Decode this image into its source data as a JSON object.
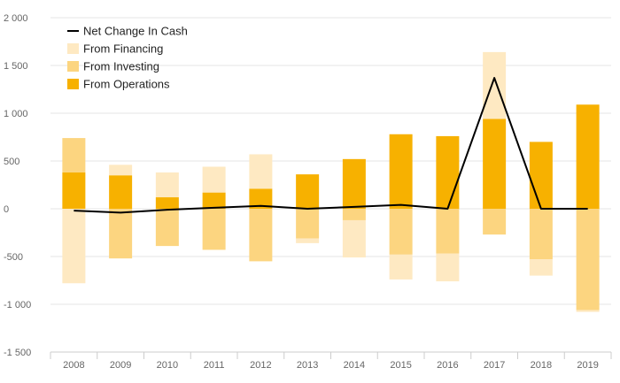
{
  "colors": {
    "background": "#ffffff",
    "grid": "#e6e6e6",
    "axis": "#cccccc",
    "operations": "#f7b100",
    "investing": "#fcd580",
    "financing": "#fee9c2",
    "net_line": "#000000",
    "tick_text": "#666666"
  },
  "chart_data": {
    "type": "bar",
    "stacked": true,
    "categories": [
      "2008",
      "2009",
      "2010",
      "2011",
      "2012",
      "2013",
      "2014",
      "2015",
      "2016",
      "2017",
      "2018",
      "2019"
    ],
    "series": [
      {
        "name": "From Financing",
        "kind": "bar",
        "color": "#fee9c2",
        "values": [
          -780,
          110,
          260,
          270,
          360,
          -50,
          -390,
          -260,
          -290,
          700,
          -170,
          -20
        ]
      },
      {
        "name": "From Investing",
        "kind": "bar",
        "color": "#fcd580",
        "values": [
          360,
          -520,
          -390,
          -430,
          -550,
          -310,
          -120,
          -480,
          -470,
          -270,
          -530,
          -1060
        ]
      },
      {
        "name": "From Operations",
        "kind": "bar",
        "color": "#f7b100",
        "values": [
          380,
          350,
          120,
          170,
          210,
          360,
          520,
          780,
          760,
          940,
          700,
          1090
        ]
      },
      {
        "name": "Net Change In Cash",
        "kind": "line",
        "color": "#000000",
        "values": [
          -20,
          -40,
          -10,
          10,
          30,
          0,
          20,
          40,
          0,
          1370,
          0,
          0
        ]
      }
    ],
    "legend_order": [
      "Net Change In Cash",
      "From Financing",
      "From Investing",
      "From Operations"
    ],
    "legend_position": "top-left",
    "ylim": [
      -1500,
      2000
    ],
    "yticks": [
      2000,
      1500,
      1000,
      500,
      0,
      -500,
      -1000,
      -1500
    ],
    "ytick_labels": [
      "2 000",
      "1 500",
      "1 000",
      "500",
      "0",
      "-500",
      "-1 000",
      "-1 500"
    ],
    "grid": true,
    "title": "",
    "xlabel": "",
    "ylabel": ""
  }
}
